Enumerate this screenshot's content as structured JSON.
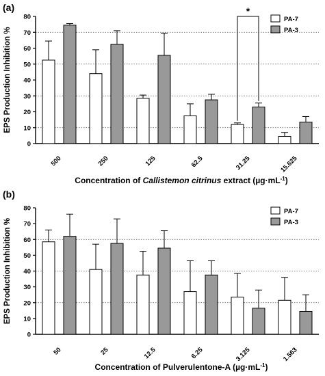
{
  "chart_data": [
    {
      "type": "bar",
      "panel_label": "(a)",
      "ylabel": "EPS Production Inhibition %",
      "xlabel_prefix": "Concentration of ",
      "xlabel_italic": "Callistemon citrinus",
      "xlabel_suffix": " extract  (µg·mL",
      "xlabel_sup": "-1",
      "xlabel_close": ")",
      "categories": [
        "500",
        "250",
        "125",
        "62.5",
        "31.25",
        "15.625"
      ],
      "ylim": [
        0,
        80
      ],
      "yticks": [
        "0",
        "10",
        "20",
        "30",
        "40",
        "50",
        "60",
        "70",
        "80"
      ],
      "grid": "dotted horizontal at 10, 30, 50, 70",
      "legend_position": "top-right",
      "series": [
        {
          "name": "PA-7",
          "color": "#ffffff",
          "values": [
            52.5,
            44,
            28.5,
            17.5,
            12,
            4.5
          ],
          "errors": [
            12,
            15,
            2,
            7.5,
            1,
            2.5
          ]
        },
        {
          "name": "PA-3",
          "color": "#999999",
          "values": [
            74.5,
            62.5,
            55.5,
            27.5,
            23,
            13.5
          ],
          "errors": [
            1,
            8.5,
            14,
            3.5,
            2.5,
            3.5
          ]
        }
      ],
      "annotations": [
        {
          "text": "*",
          "category": "31.25"
        }
      ]
    },
    {
      "type": "bar",
      "panel_label": "(b)",
      "ylabel": "EPS Production Inhibition %",
      "xlabel_prefix": "Concentration of Pulverulentone-A  (µg·mL",
      "xlabel_italic": "",
      "xlabel_suffix": "",
      "xlabel_sup": "-1",
      "xlabel_close": ")",
      "categories": [
        "50",
        "25",
        "12.5",
        "6.25",
        "3.125",
        "1.563"
      ],
      "ylim": [
        0,
        80
      ],
      "yticks": [
        "0",
        "10",
        "20",
        "30",
        "40",
        "50",
        "60",
        "70",
        "80"
      ],
      "grid": "dotted horizontal at 20, 40, 60",
      "legend_position": "top-right",
      "series": [
        {
          "name": "PA-7",
          "color": "#ffffff",
          "values": [
            58.5,
            41,
            37.5,
            27,
            23.5,
            21.5
          ],
          "errors": [
            7.5,
            16,
            15,
            19.5,
            15,
            14.5
          ]
        },
        {
          "name": "PA-3",
          "color": "#999999",
          "values": [
            62,
            57.5,
            54.5,
            37.5,
            16.5,
            14.5
          ],
          "errors": [
            14,
            15.5,
            11,
            9,
            11.5,
            10.5
          ]
        }
      ],
      "annotations": []
    }
  ]
}
